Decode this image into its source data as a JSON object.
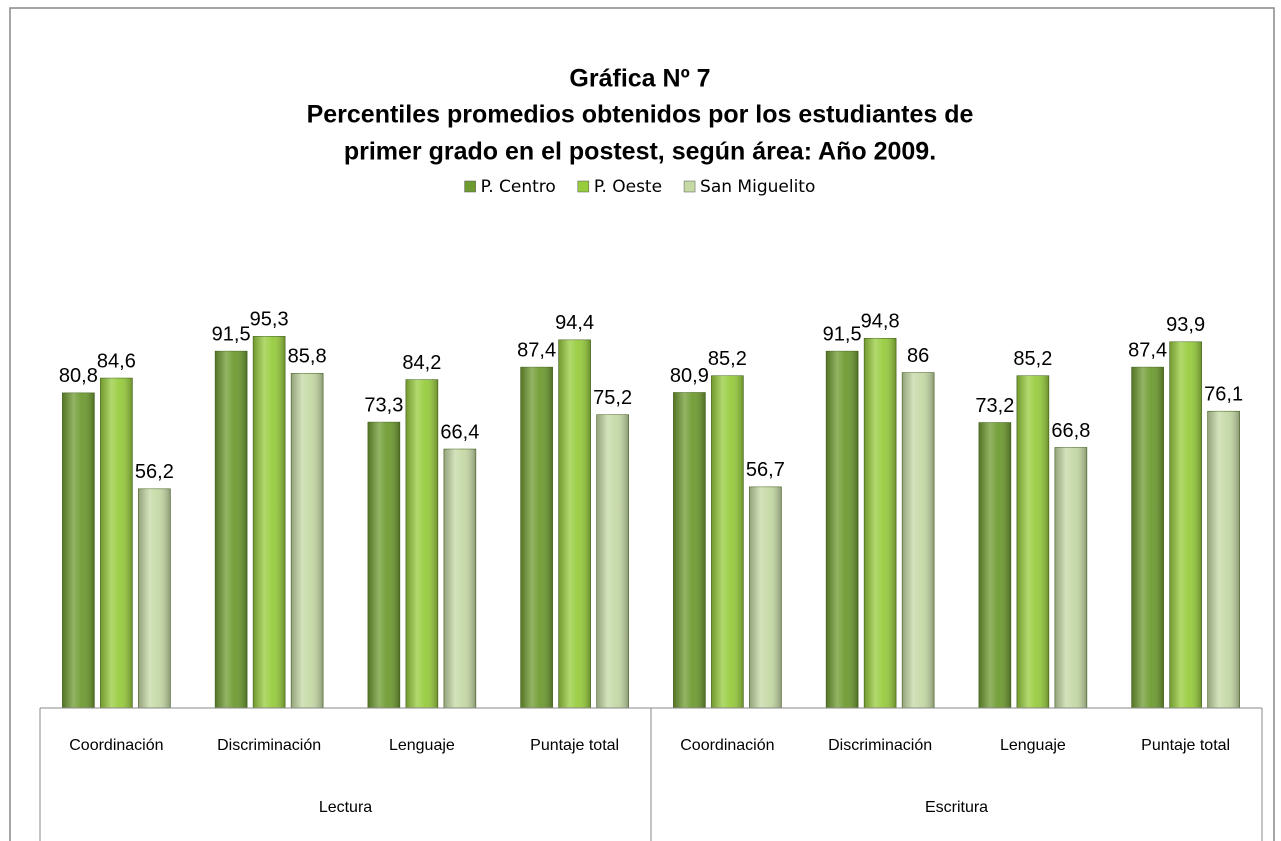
{
  "chart_data": {
    "type": "bar",
    "title": [
      "Gráfica Nº 7",
      "Percentiles promedios obtenidos por los estudiantes de",
      "primer grado en el postest, según área: Año 2009."
    ],
    "groups": [
      {
        "label": "Lectura",
        "categories": [
          "Coordinación",
          "Discriminación",
          "Lenguaje",
          "Puntaje total"
        ]
      },
      {
        "label": "Escritura",
        "categories": [
          "Coordinación",
          "Discriminación",
          "Lenguaje",
          "Puntaje total"
        ]
      }
    ],
    "series": [
      {
        "name": "P. Centro",
        "color": "#6e9b30",
        "values": [
          80.8,
          91.5,
          73.3,
          87.4,
          80.9,
          91.5,
          73.2,
          87.4
        ],
        "value_labels": [
          "80,8",
          "91,5",
          "73,3",
          "87,4",
          "80,9",
          "91,5",
          "73,2",
          "87,4"
        ]
      },
      {
        "name": "P. Oeste",
        "color": "#97cc3d",
        "values": [
          84.6,
          95.3,
          84.2,
          94.4,
          85.2,
          94.8,
          85.2,
          93.9
        ],
        "value_labels": [
          "84,6",
          "95,3",
          "84,2",
          "94,4",
          "85,2",
          "94,8",
          "85,2",
          "93,9"
        ]
      },
      {
        "name": "San Miguelito",
        "color": "#c5d9a5",
        "values": [
          56.2,
          85.8,
          66.4,
          75.2,
          56.7,
          86,
          66.8,
          76.1
        ],
        "value_labels": [
          "56,2",
          "85,8",
          "66,4",
          "75,2",
          "56,7",
          "86",
          "66,8",
          "76,1"
        ]
      }
    ],
    "ylim": [
      0,
      100
    ],
    "legend": "top"
  }
}
